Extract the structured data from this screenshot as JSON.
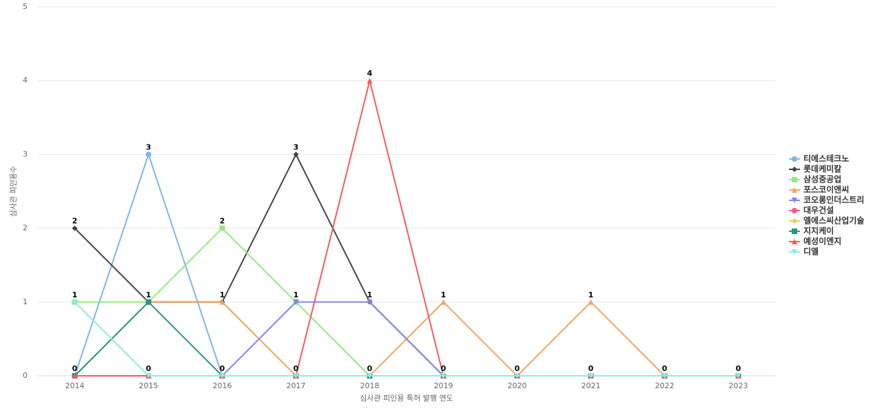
{
  "chart_data": {
    "type": "line",
    "x_label": "심사관 피인용 특허 발행 연도",
    "y_label": "심사관 피인용수",
    "categories": [
      "2014",
      "2015",
      "2016",
      "2017",
      "2018",
      "2019",
      "2020",
      "2021",
      "2022",
      "2023"
    ],
    "ylim": [
      0,
      5
    ],
    "yticks": [
      0,
      1,
      2,
      3,
      4,
      5
    ],
    "grid": true,
    "legend": "right",
    "series": [
      {
        "name": "티에스테크노",
        "color": "#7cb5ec",
        "values": [
          0,
          3,
          0,
          0,
          0,
          0,
          0,
          0,
          0,
          0
        ]
      },
      {
        "name": "롯데케미칼",
        "color": "#434348",
        "values": [
          2,
          1,
          1,
          3,
          1,
          0,
          0,
          0,
          0,
          0
        ]
      },
      {
        "name": "삼성중공업",
        "color": "#90ed7d",
        "values": [
          1,
          1,
          2,
          1,
          0,
          0,
          0,
          0,
          0,
          0
        ]
      },
      {
        "name": "포스코이앤씨",
        "color": "#f7a35c",
        "values": [
          0,
          1,
          1,
          0,
          0,
          1,
          0,
          1,
          0,
          0
        ]
      },
      {
        "name": "코오롱인더스트리",
        "color": "#8085e9",
        "values": [
          0,
          0,
          0,
          1,
          1,
          0,
          0,
          0,
          0,
          0
        ]
      },
      {
        "name": "대우건설",
        "color": "#f15c80",
        "values": [
          0,
          0,
          0,
          0,
          0,
          0,
          0,
          0,
          0,
          0
        ]
      },
      {
        "name": "엘에스씨산업기술",
        "color": "#e4d354",
        "values": [
          0,
          0,
          0,
          0,
          0,
          0,
          0,
          0,
          0,
          0
        ]
      },
      {
        "name": "지지케이",
        "color": "#2b908f",
        "values": [
          0,
          1,
          0,
          0,
          0,
          0,
          0,
          0,
          0,
          0
        ]
      },
      {
        "name": "예성이엔지",
        "color": "#f45b5b",
        "values": [
          0,
          0,
          0,
          0,
          4,
          0,
          0,
          0,
          0,
          0
        ]
      },
      {
        "name": "디엘",
        "color": "#91e8e1",
        "values": [
          1,
          0,
          0,
          0,
          0,
          0,
          0,
          0,
          0,
          0
        ]
      }
    ]
  }
}
